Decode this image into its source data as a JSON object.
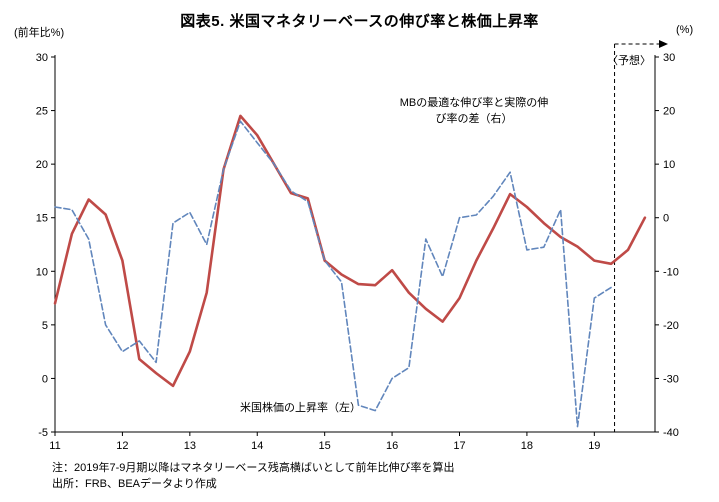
{
  "title": "図表5. 米国マネタリーベースの伸び率と株価上昇率",
  "left_axis_unit": "(前年比%)",
  "right_axis_unit": "(%)",
  "forecast_label": "〈予想〉",
  "notes": {
    "line1": "注：2019年7-9月期以降はマネタリーベース残高横ばいとして前年比伸び率を算出",
    "line2": "出所：FRB、BEAデータより作成"
  },
  "chart_data": {
    "type": "line",
    "title": "図表5. 米国マネタリーベースの伸び率と株価上昇率",
    "xlim": [
      11,
      19.9
    ],
    "x_ticks": [
      11,
      12,
      13,
      14,
      15,
      16,
      17,
      18,
      19
    ],
    "left_ylim": [
      -5,
      30
    ],
    "left_ticks": [
      -5,
      0,
      5,
      10,
      15,
      20,
      25,
      30
    ],
    "right_ylim": [
      -40,
      30
    ],
    "right_ticks": [
      -40,
      -30,
      -20,
      -10,
      0,
      10,
      20,
      30
    ],
    "grid": false,
    "legend_position": "inline-annotations",
    "forecast_x": 19.3,
    "series": [
      {
        "name": "米国株価の上昇率（左）",
        "axis": "left",
        "color": "#bf4a47",
        "style": "solid",
        "width": 2.6,
        "x": [
          11,
          11.25,
          11.5,
          11.75,
          12,
          12.25,
          12.5,
          12.75,
          13,
          13.25,
          13.5,
          13.75,
          14,
          14.25,
          14.5,
          14.75,
          15,
          15.25,
          15.5,
          15.75,
          16,
          16.25,
          16.5,
          16.75,
          17,
          17.25,
          17.5,
          17.75,
          18,
          18.25,
          18.5,
          18.75,
          19,
          19.25,
          19.5,
          19.75
        ],
        "values": [
          7,
          13.5,
          16.7,
          15.3,
          11,
          1.8,
          0.5,
          -0.7,
          2.5,
          8,
          19.5,
          24.5,
          22.7,
          20,
          17.3,
          16.8,
          11,
          9.7,
          8.8,
          8.7,
          10.1,
          8,
          6.5,
          5.3,
          7.5,
          11,
          14,
          17.2,
          16,
          14.5,
          13.2,
          12.3,
          11,
          10.7,
          12,
          15
        ]
      },
      {
        "name": "MBの最適な伸び率と実際の伸び率の差（右）",
        "axis": "right",
        "color": "#6186bc",
        "style": "dashed",
        "width": 1.6,
        "x": [
          11,
          11.25,
          11.5,
          11.75,
          12,
          12.25,
          12.5,
          12.75,
          13,
          13.25,
          13.5,
          13.75,
          14,
          14.25,
          14.5,
          14.75,
          15,
          15.25,
          15.5,
          15.75,
          16,
          16.25,
          16.5,
          16.75,
          17,
          17.25,
          17.5,
          17.75,
          18,
          18.25,
          18.5,
          18.75,
          19,
          19.25
        ],
        "values": [
          2,
          1.5,
          -4,
          -20,
          -25,
          -23,
          -27,
          -1,
          1,
          -5,
          9,
          18,
          14,
          10,
          5,
          3,
          -8,
          -12,
          -35,
          -36,
          -30,
          -28,
          -4,
          -11,
          0,
          0.5,
          4,
          8.5,
          -6,
          -5.5,
          1.5,
          -39,
          -15,
          -13
        ]
      }
    ],
    "annotations": {
      "mb_label_lines": [
        "MBの最適な伸び率と実際の伸",
        "び率の差（右）"
      ],
      "stock_label": "米国株価の上昇率（左）"
    }
  }
}
